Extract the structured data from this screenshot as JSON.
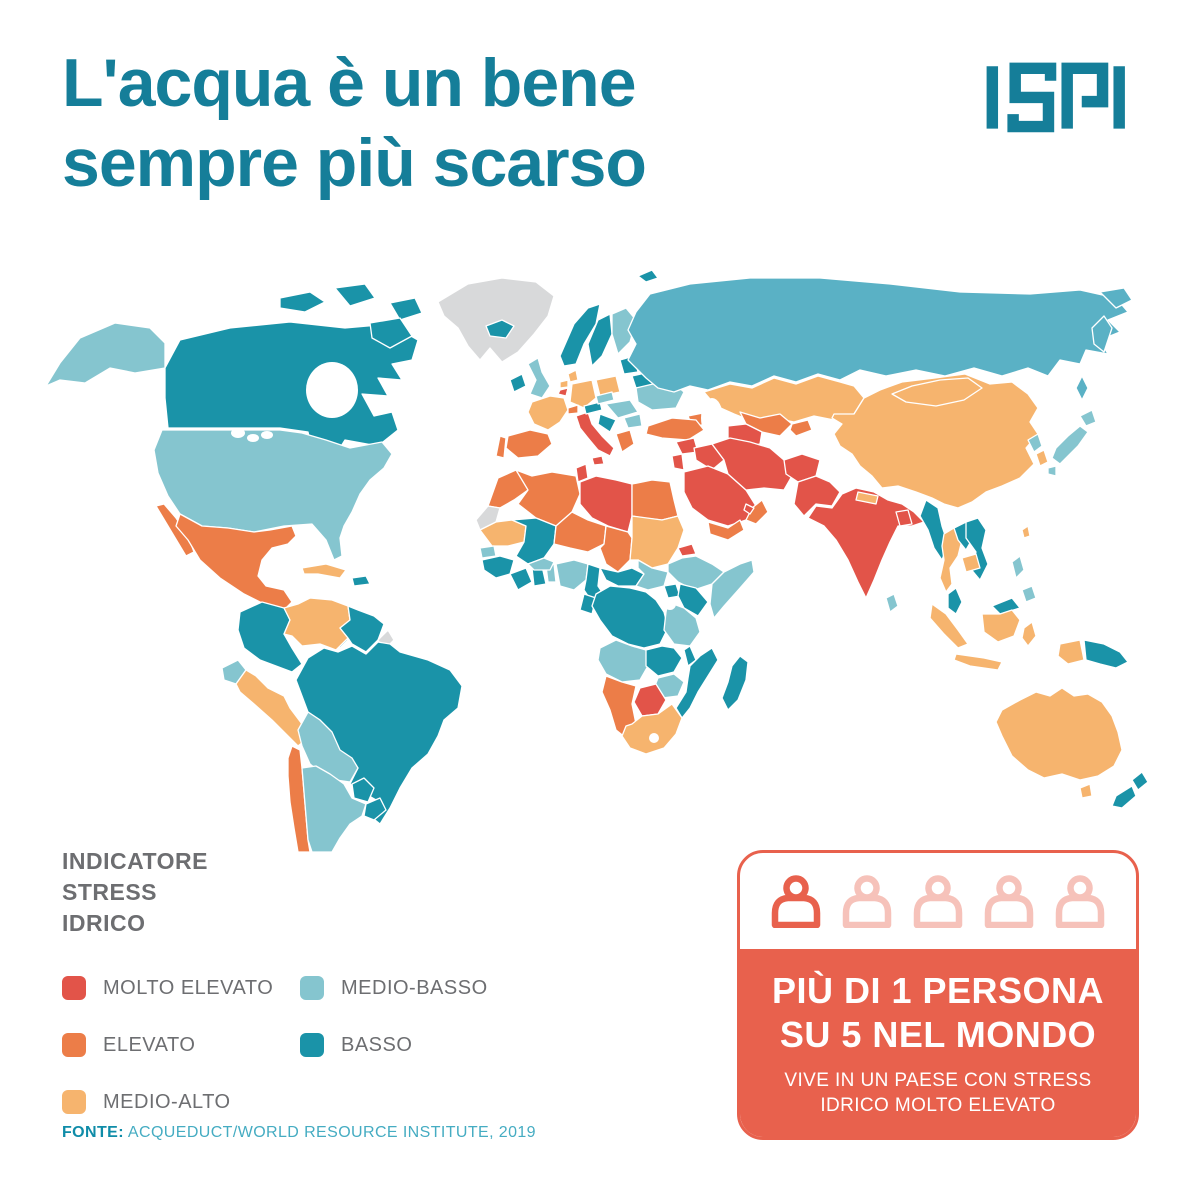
{
  "header": {
    "title_line1": "L'acqua è un bene",
    "title_line2": "sempre più scarso",
    "title_color": "#157E99",
    "logo_text": "ISPI"
  },
  "legend": {
    "title_line1": "INDICATORE",
    "title_line2": "STRESS",
    "title_line3": "IDRICO",
    "colors": {
      "molto_elevato": "#E25449",
      "elevato": "#EC7D48",
      "medio_alto": "#F6B46E",
      "medio_basso": "#85C5CF",
      "basso": "#1A93A8",
      "no_data": "#D8D9DA"
    },
    "items": [
      {
        "label": "MOLTO ELEVATO",
        "key": "molto_elevato",
        "col": 1,
        "row": 1
      },
      {
        "label": "ELEVATO",
        "key": "elevato",
        "col": 1,
        "row": 2
      },
      {
        "label": "MEDIO-ALTO",
        "key": "medio_alto",
        "col": 1,
        "row": 3
      },
      {
        "label": "MEDIO-BASSO",
        "key": "medio_basso",
        "col": 2,
        "row": 1
      },
      {
        "label": "BASSO",
        "key": "basso",
        "col": 2,
        "row": 2
      }
    ]
  },
  "fonte": {
    "label": "FONTE:",
    "source": "ACQUEDUCT/WORLD RESOURCE INSTITUTE, 2019"
  },
  "stat_card": {
    "persons_total": 5,
    "persons_highlighted": 1,
    "accent_color": "#E8614D",
    "headline_line1": "PIÙ DI 1 PERSONA",
    "headline_line2": "SU 5 NEL MONDO",
    "sub_line1": "VIVE IN UN PAESE CON STRESS",
    "sub_line2": "IDRICO MOLTO ELEVATO"
  },
  "map": {
    "russia_tint": "#5AB1C5",
    "regions": [
      {
        "name": "greenland",
        "level": "no_data"
      },
      {
        "name": "alaska",
        "level": "medio_basso"
      },
      {
        "name": "canada",
        "level": "basso"
      },
      {
        "name": "arctic-island-1",
        "level": "basso"
      },
      {
        "name": "arctic-island-2",
        "level": "basso"
      },
      {
        "name": "arctic-island-3",
        "level": "basso"
      },
      {
        "name": "baffin-island",
        "level": "basso"
      },
      {
        "name": "usa",
        "level": "medio_basso"
      },
      {
        "name": "baja-california",
        "level": "elevato"
      },
      {
        "name": "mexico",
        "level": "elevato"
      },
      {
        "name": "guatemala",
        "level": "elevato"
      },
      {
        "name": "central-america",
        "level": "basso"
      },
      {
        "name": "cuba",
        "level": "medio_alto"
      },
      {
        "name": "hispaniola",
        "level": "basso"
      },
      {
        "name": "colombia",
        "level": "basso"
      },
      {
        "name": "venezuela",
        "level": "medio_alto"
      },
      {
        "name": "guyana-suriname",
        "level": "basso"
      },
      {
        "name": "french-guiana",
        "level": "no_data"
      },
      {
        "name": "ecuador",
        "level": "medio_basso"
      },
      {
        "name": "peru",
        "level": "medio_alto"
      },
      {
        "name": "brazil",
        "level": "basso"
      },
      {
        "name": "bolivia",
        "level": "medio_basso"
      },
      {
        "name": "paraguay",
        "level": "basso"
      },
      {
        "name": "chile",
        "level": "elevato"
      },
      {
        "name": "argentina",
        "level": "medio_basso"
      },
      {
        "name": "uruguay",
        "level": "basso"
      },
      {
        "name": "iceland",
        "level": "basso"
      },
      {
        "name": "ireland",
        "level": "basso"
      },
      {
        "name": "uk",
        "level": "medio_basso"
      },
      {
        "name": "norway",
        "level": "basso"
      },
      {
        "name": "sweden",
        "level": "basso"
      },
      {
        "name": "finland",
        "level": "medio_basso"
      },
      {
        "name": "svalbard",
        "level": "basso"
      },
      {
        "name": "denmark",
        "level": "medio_alto"
      },
      {
        "name": "baltics",
        "level": "basso"
      },
      {
        "name": "belarus",
        "level": "basso"
      },
      {
        "name": "poland",
        "level": "medio_alto"
      },
      {
        "name": "germany",
        "level": "medio_alto"
      },
      {
        "name": "netherlands",
        "level": "medio_alto"
      },
      {
        "name": "belgium",
        "level": "molto_elevato"
      },
      {
        "name": "france",
        "level": "medio_alto"
      },
      {
        "name": "spain",
        "level": "elevato"
      },
      {
        "name": "portugal",
        "level": "elevato"
      },
      {
        "name": "italy",
        "level": "molto_elevato"
      },
      {
        "name": "sicily",
        "level": "molto_elevato"
      },
      {
        "name": "switzerland",
        "level": "elevato"
      },
      {
        "name": "austria",
        "level": "basso"
      },
      {
        "name": "czech-slovakia",
        "level": "medio_basso"
      },
      {
        "name": "hungary-romania",
        "level": "medio_basso"
      },
      {
        "name": "balkans",
        "level": "basso"
      },
      {
        "name": "bulgaria",
        "level": "medio_basso"
      },
      {
        "name": "greece",
        "level": "elevato"
      },
      {
        "name": "ukraine",
        "level": "medio_basso"
      },
      {
        "name": "russia",
        "level": "medio_basso",
        "tint": true
      },
      {
        "name": "kamchatka",
        "level": "medio_basso",
        "tint": true
      },
      {
        "name": "chukotka",
        "level": "medio_basso",
        "tint": true
      },
      {
        "name": "sakhalin",
        "level": "medio_basso",
        "tint": true
      },
      {
        "name": "kazakhstan",
        "level": "medio_alto"
      },
      {
        "name": "uzbekistan",
        "level": "elevato"
      },
      {
        "name": "turkmenistan",
        "level": "molto_elevato"
      },
      {
        "name": "kyrgyzstan-tajikistan",
        "level": "elevato"
      },
      {
        "name": "caucasus",
        "level": "elevato"
      },
      {
        "name": "turkey",
        "level": "elevato"
      },
      {
        "name": "syria",
        "level": "molto_elevato"
      },
      {
        "name": "iraq",
        "level": "molto_elevato"
      },
      {
        "name": "israel-jordan",
        "level": "molto_elevato"
      },
      {
        "name": "saudi-arabia",
        "level": "molto_elevato"
      },
      {
        "name": "yemen",
        "level": "elevato"
      },
      {
        "name": "oman",
        "level": "elevato"
      },
      {
        "name": "uae-qatar",
        "level": "molto_elevato"
      },
      {
        "name": "iran",
        "level": "molto_elevato"
      },
      {
        "name": "afghanistan",
        "level": "molto_elevato"
      },
      {
        "name": "pakistan",
        "level": "molto_elevato"
      },
      {
        "name": "india",
        "level": "molto_elevato"
      },
      {
        "name": "nepal",
        "level": "medio_alto"
      },
      {
        "name": "bangladesh",
        "level": "molto_elevato"
      },
      {
        "name": "sri-lanka",
        "level": "medio_basso"
      },
      {
        "name": "china",
        "level": "medio_alto"
      },
      {
        "name": "mongolia",
        "level": "medio_alto"
      },
      {
        "name": "myanmar",
        "level": "basso"
      },
      {
        "name": "thailand",
        "level": "medio_alto"
      },
      {
        "name": "laos",
        "level": "basso"
      },
      {
        "name": "vietnam",
        "level": "basso"
      },
      {
        "name": "cambodia",
        "level": "medio_alto"
      },
      {
        "name": "malaysia",
        "level": "basso"
      },
      {
        "name": "borneo-malaysia",
        "level": "basso"
      },
      {
        "name": "sumatra",
        "level": "medio_alto"
      },
      {
        "name": "java",
        "level": "medio_alto"
      },
      {
        "name": "kalimantan",
        "level": "medio_alto"
      },
      {
        "name": "sulawesi",
        "level": "medio_alto"
      },
      {
        "name": "west-papua",
        "level": "medio_alto"
      },
      {
        "name": "papua-new-guinea",
        "level": "basso"
      },
      {
        "name": "philippines-luzon",
        "level": "medio_basso"
      },
      {
        "name": "philippines-mindanao",
        "level": "medio_basso"
      },
      {
        "name": "taiwan",
        "level": "medio_alto"
      },
      {
        "name": "south-korea",
        "level": "medio_alto"
      },
      {
        "name": "north-korea",
        "level": "medio_basso"
      },
      {
        "name": "japan-honshu",
        "level": "medio_basso"
      },
      {
        "name": "japan-hokkaido",
        "level": "medio_basso"
      },
      {
        "name": "japan-kyushu",
        "level": "medio_basso"
      },
      {
        "name": "morocco",
        "level": "elevato"
      },
      {
        "name": "western-sahara",
        "level": "no_data"
      },
      {
        "name": "algeria",
        "level": "elevato"
      },
      {
        "name": "tunisia",
        "level": "molto_elevato"
      },
      {
        "name": "libya",
        "level": "molto_elevato"
      },
      {
        "name": "egypt",
        "level": "elevato"
      },
      {
        "name": "mauritania",
        "level": "medio_alto"
      },
      {
        "name": "mali",
        "level": "basso"
      },
      {
        "name": "niger",
        "level": "elevato"
      },
      {
        "name": "chad",
        "level": "elevato"
      },
      {
        "name": "sudan",
        "level": "medio_alto"
      },
      {
        "name": "eritrea",
        "level": "molto_elevato"
      },
      {
        "name": "ethiopia",
        "level": "medio_basso"
      },
      {
        "name": "somalia",
        "level": "medio_basso"
      },
      {
        "name": "senegal",
        "level": "medio_basso"
      },
      {
        "name": "guinea",
        "level": "basso"
      },
      {
        "name": "ivory-coast",
        "level": "basso"
      },
      {
        "name": "ghana",
        "level": "basso"
      },
      {
        "name": "togo-benin",
        "level": "medio_basso"
      },
      {
        "name": "burkina-faso",
        "level": "medio_basso"
      },
      {
        "name": "nigeria",
        "level": "medio_basso"
      },
      {
        "name": "cameroon",
        "level": "basso"
      },
      {
        "name": "central-african-republic",
        "level": "basso"
      },
      {
        "name": "south-sudan",
        "level": "medio_basso"
      },
      {
        "name": "uganda",
        "level": "basso"
      },
      {
        "name": "kenya",
        "level": "basso"
      },
      {
        "name": "congo-gabon",
        "level": "basso"
      },
      {
        "name": "drc",
        "level": "basso"
      },
      {
        "name": "tanzania",
        "level": "medio_basso"
      },
      {
        "name": "angola",
        "level": "medio_basso"
      },
      {
        "name": "zambia",
        "level": "basso"
      },
      {
        "name": "malawi",
        "level": "basso"
      },
      {
        "name": "mozambique",
        "level": "basso"
      },
      {
        "name": "zimbabwe",
        "level": "medio_basso"
      },
      {
        "name": "botswana",
        "level": "molto_elevato"
      },
      {
        "name": "namibia",
        "level": "elevato"
      },
      {
        "name": "south-africa",
        "level": "medio_alto"
      },
      {
        "name": "madagascar",
        "level": "basso"
      },
      {
        "name": "australia",
        "level": "medio_alto"
      },
      {
        "name": "tasmania",
        "level": "medio_alto"
      },
      {
        "name": "new-zealand-north",
        "level": "basso"
      },
      {
        "name": "new-zealand-south",
        "level": "basso"
      }
    ]
  }
}
